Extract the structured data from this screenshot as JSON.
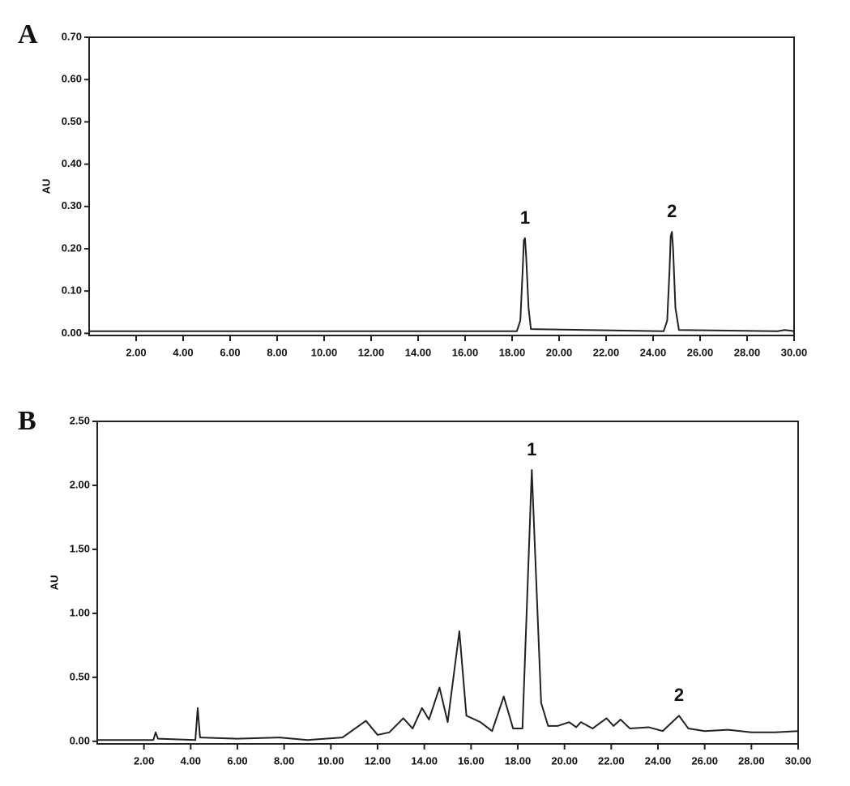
{
  "chart_data": [
    {
      "type": "line",
      "panel": "A",
      "ylabel": "AU",
      "color": "#222222",
      "x": [
        0,
        18.2,
        18.35,
        18.45,
        18.5,
        18.55,
        18.6,
        18.7,
        18.8,
        24.45,
        24.6,
        24.7,
        24.75,
        24.8,
        24.85,
        24.95,
        25.1,
        29.3,
        29.6,
        29.9,
        30
      ],
      "values": [
        0.005,
        0.005,
        0.03,
        0.15,
        0.22,
        0.225,
        0.18,
        0.06,
        0.01,
        0.005,
        0.03,
        0.15,
        0.23,
        0.24,
        0.2,
        0.06,
        0.008,
        0.005,
        0.008,
        0.006,
        0.005
      ],
      "xlim": [
        0,
        30
      ],
      "ylim": [
        -0.005,
        0.7
      ],
      "xticks": [
        {
          "value": 2,
          "label": "2.00"
        },
        {
          "value": 4,
          "label": "4.00"
        },
        {
          "value": 6,
          "label": "6.00"
        },
        {
          "value": 8,
          "label": "8.00"
        },
        {
          "value": 10,
          "label": "10.00"
        },
        {
          "value": 12,
          "label": "12.00"
        },
        {
          "value": 14,
          "label": "14.00"
        },
        {
          "value": 16,
          "label": "16.00"
        },
        {
          "value": 18,
          "label": "18.00"
        },
        {
          "value": 20,
          "label": "20.00"
        },
        {
          "value": 22,
          "label": "22.00"
        },
        {
          "value": 24,
          "label": "24.00"
        },
        {
          "value": 26,
          "label": "26.00"
        },
        {
          "value": 28,
          "label": "28.00"
        },
        {
          "value": 30,
          "label": "30.00"
        }
      ],
      "yticks": [
        {
          "value": 0,
          "label": "0.00"
        },
        {
          "value": 0.1,
          "label": "0.10"
        },
        {
          "value": 0.2,
          "label": "0.20"
        },
        {
          "value": 0.3,
          "label": "0.30"
        },
        {
          "value": 0.4,
          "label": "0.40"
        },
        {
          "value": 0.5,
          "label": "0.50"
        },
        {
          "value": 0.6,
          "label": "0.60"
        },
        {
          "value": 0.7,
          "label": "0.70"
        }
      ],
      "annotations": [
        {
          "text": "1",
          "x": 18.55
        },
        {
          "text": "2",
          "x": 24.8
        }
      ]
    },
    {
      "type": "line",
      "panel": "B",
      "ylabel": "AU",
      "color": "#222222",
      "x": [
        0,
        2.4,
        2.5,
        2.6,
        4.2,
        4.3,
        4.4,
        6,
        7.8,
        9,
        10.5,
        11.5,
        12,
        12.5,
        13.1,
        13.5,
        13.9,
        14.2,
        14.65,
        15,
        15.5,
        15.8,
        16.4,
        16.9,
        17.4,
        17.8,
        18.2,
        18.6,
        19,
        19.3,
        19.7,
        20.2,
        20.5,
        20.7,
        21.2,
        21.8,
        22.1,
        22.4,
        22.8,
        23.6,
        24.2,
        24.9,
        25.3,
        26,
        27,
        28,
        29,
        30
      ],
      "values": [
        0.01,
        0.01,
        0.07,
        0.02,
        0.01,
        0.26,
        0.03,
        0.02,
        0.03,
        0.01,
        0.03,
        0.16,
        0.05,
        0.07,
        0.18,
        0.1,
        0.26,
        0.17,
        0.42,
        0.15,
        0.86,
        0.2,
        0.15,
        0.08,
        0.35,
        0.1,
        0.1,
        2.12,
        0.3,
        0.12,
        0.12,
        0.15,
        0.11,
        0.15,
        0.1,
        0.18,
        0.12,
        0.17,
        0.1,
        0.11,
        0.08,
        0.2,
        0.1,
        0.08,
        0.09,
        0.07,
        0.07,
        0.08
      ],
      "xlim": [
        0,
        30
      ],
      "ylim": [
        -0.02,
        2.5
      ],
      "xticks": [
        {
          "value": 2,
          "label": "2.00"
        },
        {
          "value": 4,
          "label": "4.00"
        },
        {
          "value": 6,
          "label": "6.00"
        },
        {
          "value": 8,
          "label": "8.00"
        },
        {
          "value": 10,
          "label": "10.00"
        },
        {
          "value": 12,
          "label": "12.00"
        },
        {
          "value": 14,
          "label": "14.00"
        },
        {
          "value": 16,
          "label": "16.00"
        },
        {
          "value": 18,
          "label": "18.00"
        },
        {
          "value": 20,
          "label": "20.00"
        },
        {
          "value": 22,
          "label": "22.00"
        },
        {
          "value": 24,
          "label": "24.00"
        },
        {
          "value": 26,
          "label": "26.00"
        },
        {
          "value": 28,
          "label": "28.00"
        },
        {
          "value": 30,
          "label": "30.00"
        }
      ],
      "yticks": [
        {
          "value": 0,
          "label": "0.00"
        },
        {
          "value": 0.5,
          "label": "0.50"
        },
        {
          "value": 1,
          "label": "1.00"
        },
        {
          "value": 1.5,
          "label": "1.50"
        },
        {
          "value": 2,
          "label": "2.00"
        },
        {
          "value": 2.5,
          "label": "2.50"
        }
      ],
      "annotations": [
        {
          "text": "1",
          "x": 18.6
        },
        {
          "text": "2",
          "x": 24.9
        }
      ]
    }
  ]
}
